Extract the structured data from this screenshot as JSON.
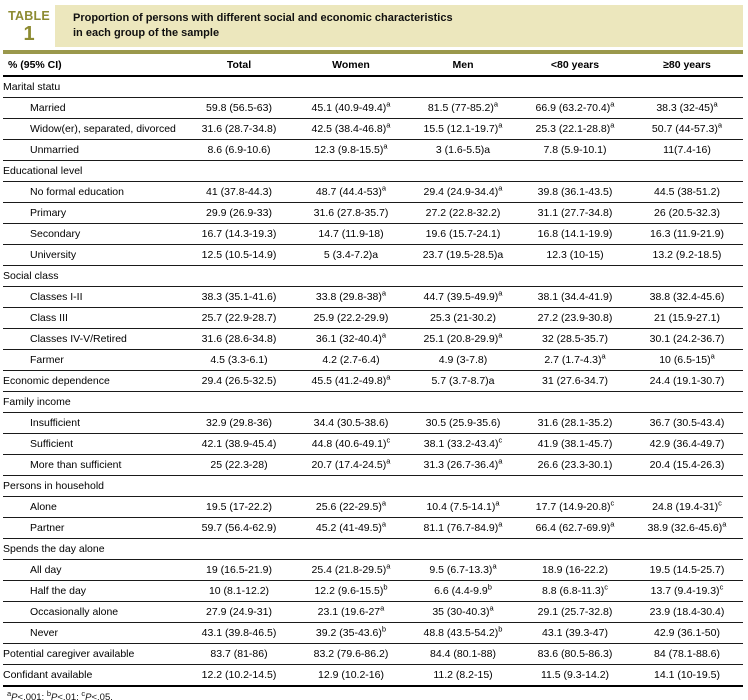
{
  "header": {
    "badge_word": "TABLE",
    "badge_number": "1",
    "title_line1": "Proportion of persons with different social and economic characteristics",
    "title_line2": "in each group of the sample"
  },
  "table": {
    "columns": [
      "% (95% CI)",
      "Total",
      "Women",
      "Men",
      "<80 years",
      "≥80 years"
    ],
    "rows": [
      {
        "type": "section",
        "label": "Marital statu"
      },
      {
        "type": "data",
        "indent": true,
        "label": "Married",
        "cells": [
          {
            "m": "59.8 (56.5-63)"
          },
          {
            "m": "45.1 (40.9-49.4)",
            "s": "a"
          },
          {
            "m": "81.5 (77-85.2)",
            "s": "a"
          },
          {
            "m": "66.9 (63.2-70.4)",
            "s": "a"
          },
          {
            "m": "38.3 (32-45)",
            "s": "a"
          }
        ]
      },
      {
        "type": "data",
        "indent": true,
        "label": "Widow(er), separated, divorced",
        "cells": [
          {
            "m": "31.6 (28.7-34.8)"
          },
          {
            "m": "42.5 (38.4-46.8)",
            "s": "a"
          },
          {
            "m": "15.5 (12.1-19.7)",
            "s": "a"
          },
          {
            "m": "25.3 (22.1-28.8)",
            "s": "a"
          },
          {
            "m": "50.7 (44-57.3)",
            "s": "a"
          }
        ]
      },
      {
        "type": "data",
        "indent": true,
        "label": "Unmarried",
        "cells": [
          {
            "m": "8.6 (6.9-10.6)"
          },
          {
            "m": "12.3 (9.8-15.5)",
            "s": "a"
          },
          {
            "m": "3 (1.6-5.5)a"
          },
          {
            "m": "7.8 (5.9-10.1)"
          },
          {
            "m": "11(7.4-16)"
          }
        ]
      },
      {
        "type": "section",
        "label": "Educational level"
      },
      {
        "type": "data",
        "indent": true,
        "label": "No formal education",
        "cells": [
          {
            "m": "41 (37.8-44.3)"
          },
          {
            "m": "48.7 (44.4-53)",
            "s": "a"
          },
          {
            "m": "29.4 (24.9-34.4)",
            "s": "a"
          },
          {
            "m": "39.8 (36.1-43.5)"
          },
          {
            "m": "44.5 (38-51.2)"
          }
        ]
      },
      {
        "type": "data",
        "indent": true,
        "label": "Primary",
        "cells": [
          {
            "m": "29.9 (26.9-33)"
          },
          {
            "m": "31.6 (27.8-35.7)"
          },
          {
            "m": "27.2 (22.8-32.2)"
          },
          {
            "m": "31.1 (27.7-34.8)"
          },
          {
            "m": "26 (20.5-32.3)"
          }
        ]
      },
      {
        "type": "data",
        "indent": true,
        "label": "Secondary",
        "cells": [
          {
            "m": "16.7 (14.3-19.3)"
          },
          {
            "m": "14.7 (11.9-18)"
          },
          {
            "m": "19.6 (15.7-24.1)"
          },
          {
            "m": "16.8 (14.1-19.9)"
          },
          {
            "m": "16.3 (11.9-21.9)"
          }
        ]
      },
      {
        "type": "data",
        "indent": true,
        "label": "University",
        "cells": [
          {
            "m": "12.5 (10.5-14.9)"
          },
          {
            "m": "5 (3.4-7.2)a"
          },
          {
            "m": "23.7 (19.5-28.5)a"
          },
          {
            "m": "12.3 (10-15)"
          },
          {
            "m": "13.2 (9.2-18.5)"
          }
        ]
      },
      {
        "type": "section",
        "label": "Social class"
      },
      {
        "type": "data",
        "indent": true,
        "label": "Classes I-II",
        "cells": [
          {
            "m": "38.3 (35.1-41.6)"
          },
          {
            "m": "33.8 (29.8-38)",
            "s": "a"
          },
          {
            "m": "44.7 (39.5-49.9)",
            "s": "a"
          },
          {
            "m": "38.1 (34.4-41.9)"
          },
          {
            "m": "38.8 (32.4-45.6)"
          }
        ]
      },
      {
        "type": "data",
        "indent": true,
        "label": "Class III",
        "cells": [
          {
            "m": "25.7 (22.9-28.7)"
          },
          {
            "m": "25.9 (22.2-29.9)"
          },
          {
            "m": "25.3 (21-30.2)"
          },
          {
            "m": "27.2 (23.9-30.8)"
          },
          {
            "m": "21 (15.9-27.1)"
          }
        ]
      },
      {
        "type": "data",
        "indent": true,
        "label": "Classes IV-V/Retired",
        "cells": [
          {
            "m": "31.6 (28.6-34.8)"
          },
          {
            "m": "36.1 (32-40.4)",
            "s": "a"
          },
          {
            "m": "25.1 (20.8-29.9)",
            "s": "a"
          },
          {
            "m": "32 (28.5-35.7)"
          },
          {
            "m": "30.1 (24.2-36.7)"
          }
        ]
      },
      {
        "type": "data",
        "indent": true,
        "label": "Farmer",
        "cells": [
          {
            "m": "4.5 (3.3-6.1)"
          },
          {
            "m": "4.2 (2.7-6.4)"
          },
          {
            "m": "4.9 (3-7.8)"
          },
          {
            "m": "2.7 (1.7-4.3)",
            "s": "a"
          },
          {
            "m": "10 (6.5-15)",
            "s": "a"
          }
        ]
      },
      {
        "type": "data",
        "indent": false,
        "label": "Economic dependence",
        "cells": [
          {
            "m": "29.4 (26.5-32.5)"
          },
          {
            "m": "45.5 (41.2-49.8)",
            "s": "a"
          },
          {
            "m": "5.7 (3.7-8.7)a"
          },
          {
            "m": "31 (27.6-34.7)"
          },
          {
            "m": "24.4 (19.1-30.7)"
          }
        ]
      },
      {
        "type": "section",
        "label": "Family income"
      },
      {
        "type": "data",
        "indent": true,
        "label": "Insufficient",
        "cells": [
          {
            "m": "32.9 (29.8-36)"
          },
          {
            "m": "34.4 (30.5-38.6)"
          },
          {
            "m": "30.5 (25.9-35.6)"
          },
          {
            "m": "31.6 (28.1-35.2)"
          },
          {
            "m": "36.7 (30.5-43.4)"
          }
        ]
      },
      {
        "type": "data",
        "indent": true,
        "label": "Sufficient",
        "cells": [
          {
            "m": "42.1 (38.9-45.4)"
          },
          {
            "m": "44.8 (40.6-49.1)",
            "s": "c"
          },
          {
            "m": "38.1 (33.2-43.4)",
            "s": "c"
          },
          {
            "m": "41.9 (38.1-45.7)"
          },
          {
            "m": "42.9 (36.4-49.7)"
          }
        ]
      },
      {
        "type": "data",
        "indent": true,
        "label": "More than sufficient",
        "cells": [
          {
            "m": "25 (22.3-28)"
          },
          {
            "m": "20.7 (17.4-24.5)",
            "s": "a"
          },
          {
            "m": "31.3 (26.7-36.4)",
            "s": "a"
          },
          {
            "m": "26.6 (23.3-30.1)"
          },
          {
            "m": "20.4 (15.4-26.3)"
          }
        ]
      },
      {
        "type": "section",
        "label": "Persons in household"
      },
      {
        "type": "data",
        "indent": true,
        "label": "Alone",
        "cells": [
          {
            "m": "19.5 (17-22.2)"
          },
          {
            "m": "25.6 (22-29.5)",
            "s": "a"
          },
          {
            "m": "10.4 (7.5-14.1)",
            "s": "a"
          },
          {
            "m": "17.7 (14.9-20.8)",
            "s": "c"
          },
          {
            "m": "24.8 (19.4-31)",
            "s": "c"
          }
        ]
      },
      {
        "type": "data",
        "indent": true,
        "label": "Partner",
        "cells": [
          {
            "m": "59.7 (56.4-62.9)"
          },
          {
            "m": "45.2 (41-49.5)",
            "s": "a"
          },
          {
            "m": "81.1 (76.7-84.9)",
            "s": "a"
          },
          {
            "m": "66.4 (62.7-69.9)",
            "s": "a"
          },
          {
            "m": "38.9 (32.6-45.6)",
            "s": "a"
          }
        ]
      },
      {
        "type": "section",
        "label": "Spends the day alone"
      },
      {
        "type": "data",
        "indent": true,
        "label": "All day",
        "cells": [
          {
            "m": "19 (16.5-21.9)"
          },
          {
            "m": "25.4 (21.8-29.5)",
            "s": "a"
          },
          {
            "m": "9.5 (6.7-13.3)",
            "s": "a"
          },
          {
            "m": "18.9 (16-22.2)"
          },
          {
            "m": "19.5 (14.5-25.7)"
          }
        ]
      },
      {
        "type": "data",
        "indent": true,
        "label": "Half the day",
        "cells": [
          {
            "m": "10 (8.1-12.2)"
          },
          {
            "m": "12.2 (9.6-15.5)",
            "s": "b"
          },
          {
            "m": "6.6 (4.4-9.9",
            "s": "b"
          },
          {
            "m": "8.8 (6.8-11.3)",
            "s": "c"
          },
          {
            "m": "13.7 (9.4-19.3)",
            "s": "c"
          }
        ]
      },
      {
        "type": "data",
        "indent": true,
        "label": "Occasionally alone",
        "cells": [
          {
            "m": "27.9 (24.9-31)"
          },
          {
            "m": "23.1 (19.6-27",
            "s": "a"
          },
          {
            "m": "35 (30-40.3)",
            "s": "a"
          },
          {
            "m": "29.1 (25.7-32.8)"
          },
          {
            "m": "23.9 (18.4-30.4)"
          }
        ]
      },
      {
        "type": "data",
        "indent": true,
        "label": "Never",
        "cells": [
          {
            "m": "43.1 (39.8-46.5)"
          },
          {
            "m": "39.2 (35-43.6)",
            "s": "b"
          },
          {
            "m": "48.8 (43.5-54.2)",
            "s": "b"
          },
          {
            "m": "43.1 (39.3-47)"
          },
          {
            "m": "42.9 (36.1-50)"
          }
        ]
      },
      {
        "type": "data",
        "indent": false,
        "label": "Potential caregiver available",
        "cells": [
          {
            "m": "83.7 (81-86)"
          },
          {
            "m": "83.2 (79.6-86.2)"
          },
          {
            "m": "84.4 (80.1-88)"
          },
          {
            "m": "83.6 (80.5-86.3)"
          },
          {
            "m": "84 (78.1-88.6)"
          }
        ]
      },
      {
        "type": "data",
        "indent": false,
        "label": "Confidant available",
        "cells": [
          {
            "m": "12.2 (10.2-14.5)"
          },
          {
            "m": "12.9 (10.2-16)"
          },
          {
            "m": "11.2 (8.2-15)"
          },
          {
            "m": "11.5 (9.3-14.2)"
          },
          {
            "m": "14.1 (10-19.5)"
          }
        ]
      }
    ]
  },
  "footnote": {
    "parts": [
      {
        "sup": "a",
        "p": "P",
        "rest": "<.001; "
      },
      {
        "sup": "b",
        "p": "P",
        "rest": "<.01; "
      },
      {
        "sup": "c",
        "p": "P",
        "rest": "<.05."
      }
    ]
  }
}
